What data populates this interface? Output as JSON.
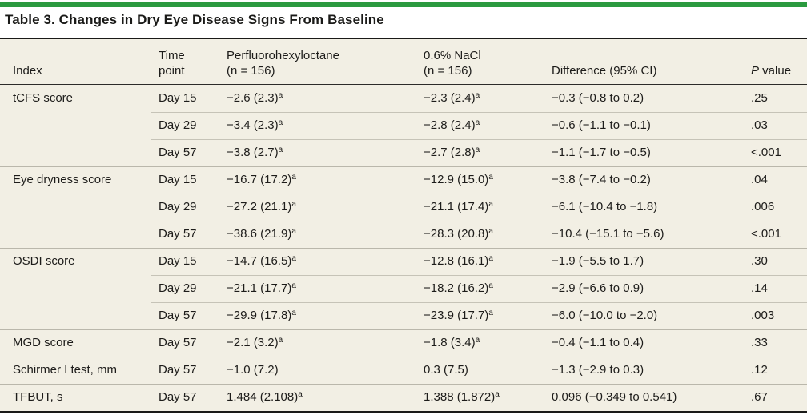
{
  "title": "Table 3. Changes in Dry Eye Disease Signs From Baseline",
  "accent_color": "#2b9a3f",
  "table_background": "#f2efe4",
  "table": {
    "columns": [
      {
        "line1": "Index",
        "line2": ""
      },
      {
        "line1": "Time",
        "line2": "point"
      },
      {
        "line1": "Perfluorohexyloctane",
        "line2": "(n = 156)"
      },
      {
        "line1": "0.6% NaCl",
        "line2": "(n = 156)"
      },
      {
        "line1": "Difference (95% CI)",
        "line2": ""
      },
      {
        "line1": "P value",
        "line2": ""
      }
    ],
    "rows": [
      {
        "index": "tCFS score",
        "time_point": "Day 15",
        "pfho": "−2.6 (2.3)^a",
        "nacl": "−2.3 (2.4)^a",
        "difference": "−0.3 (−0.8 to 0.2)",
        "p_value": ".25",
        "group_start": true
      },
      {
        "index": "",
        "time_point": "Day 29",
        "pfho": "−3.4 (2.3)^a",
        "nacl": "−2.8 (2.4)^a",
        "difference": "−0.6 (−1.1 to −0.1)",
        "p_value": ".03",
        "group_start": false
      },
      {
        "index": "",
        "time_point": "Day 57",
        "pfho": "−3.8 (2.7)^a",
        "nacl": "−2.7 (2.8)^a",
        "difference": "−1.1 (−1.7 to −0.5)",
        "p_value": "<.001",
        "group_start": false
      },
      {
        "index": "Eye dryness score",
        "time_point": "Day 15",
        "pfho": "−16.7 (17.2)^a",
        "nacl": "−12.9 (15.0)^a",
        "difference": "−3.8 (−7.4 to −0.2)",
        "p_value": ".04",
        "group_start": true
      },
      {
        "index": "",
        "time_point": "Day 29",
        "pfho": "−27.2 (21.1)^a",
        "nacl": "−21.1 (17.4)^a",
        "difference": "−6.1 (−10.4 to −1.8)",
        "p_value": ".006",
        "group_start": false
      },
      {
        "index": "",
        "time_point": "Day 57",
        "pfho": "−38.6 (21.9)^a",
        "nacl": "−28.3 (20.8)^a",
        "difference": "−10.4 (−15.1 to −5.6)",
        "p_value": "<.001",
        "group_start": false
      },
      {
        "index": "OSDI score",
        "time_point": "Day 15",
        "pfho": "−14.7 (16.5)^a",
        "nacl": "−12.8 (16.1)^a",
        "difference": "−1.9 (−5.5 to 1.7)",
        "p_value": ".30",
        "group_start": true
      },
      {
        "index": "",
        "time_point": "Day 29",
        "pfho": "−21.1 (17.7)^a",
        "nacl": "−18.2 (16.2)^a",
        "difference": "−2.9 (−6.6 to 0.9)",
        "p_value": ".14",
        "group_start": false
      },
      {
        "index": "",
        "time_point": "Day 57",
        "pfho": "−29.9 (17.8)^a",
        "nacl": "−23.9 (17.7)^a",
        "difference": "−6.0 (−10.0 to −2.0)",
        "p_value": ".003",
        "group_start": false
      },
      {
        "index": "MGD score",
        "time_point": "Day 57",
        "pfho": "−2.1 (3.2)^a",
        "nacl": "−1.8 (3.4)^a",
        "difference": "−0.4 (−1.1 to 0.4)",
        "p_value": ".33",
        "group_start": true
      },
      {
        "index": "Schirmer I test, mm",
        "time_point": "Day 57",
        "pfho": "−1.0 (7.2)",
        "nacl": "0.3 (7.5)",
        "difference": "−1.3 (−2.9 to 0.3)",
        "p_value": ".12",
        "group_start": true
      },
      {
        "index": "TFBUT, s",
        "time_point": "Day 57",
        "pfho": "1.484 (2.108)^a",
        "nacl": "1.388 (1.872)^a",
        "difference": "0.096 (−0.349 to 0.541)",
        "p_value": ".67",
        "group_start": true
      }
    ]
  }
}
